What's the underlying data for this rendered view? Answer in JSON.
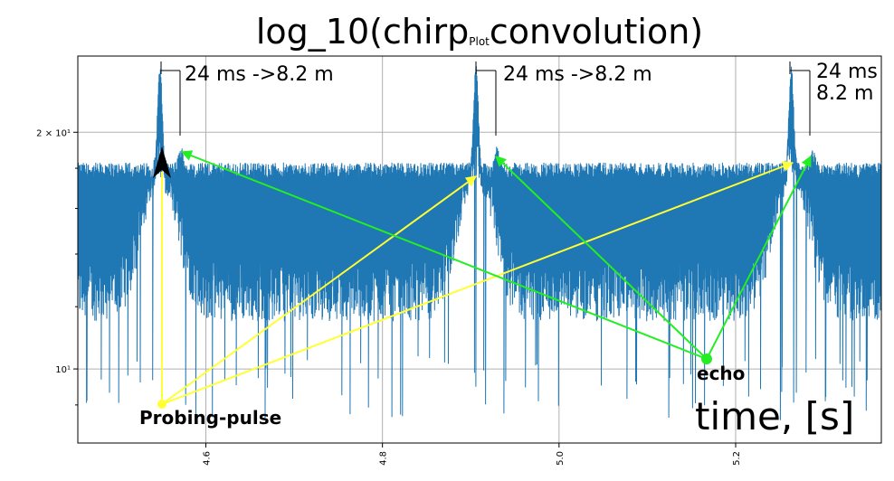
{
  "chart_data": {
    "type": "line",
    "title": "log_10(chirp",
    "title_sub": "Plot",
    "title_tail": "convolution)",
    "xlabel": "time, [s]",
    "ylabel": "",
    "xlim": [
      4.455,
      5.365
    ],
    "ylim": [
      8.05,
      25.0
    ],
    "yscale": "log",
    "grid": true,
    "x_ticks": [
      4.6,
      4.8,
      5.0,
      5.2
    ],
    "x_tick_labels": [
      "4.6",
      "4.8",
      "5.0",
      "5.2"
    ],
    "y_ticks": [
      10,
      20
    ],
    "y_tick_labels": [
      "10¹",
      "2 × 10¹"
    ],
    "series": [
      {
        "name": "log_10(chirp convolution)",
        "color": "#1f77b4",
        "baseline": 17.5,
        "noise_low": 11.5,
        "spike_min": 8.6,
        "peaks": [
          {
            "x": 4.548,
            "value": 23.5
          },
          {
            "x": 4.906,
            "value": 23.6
          },
          {
            "x": 5.263,
            "value": 23.5
          }
        ],
        "echo_peaks": [
          {
            "x": 4.572,
            "value": 18.4
          },
          {
            "x": 4.93,
            "value": 18.4
          },
          {
            "x": 5.287,
            "value": 18.3
          }
        ]
      }
    ],
    "annotations": {
      "delay_1": "24 ms ->8.2 m",
      "delay_2": "24 ms ->8.2 m",
      "delay_3a": "24 ms",
      "delay_3b": "8.2 m",
      "probing_label": "Probing-pulse",
      "echo_label": "echo"
    },
    "colors": {
      "probing_arrows": "#ffff33",
      "echo_arrows": "#22ee22",
      "pointer": "#000000"
    }
  }
}
